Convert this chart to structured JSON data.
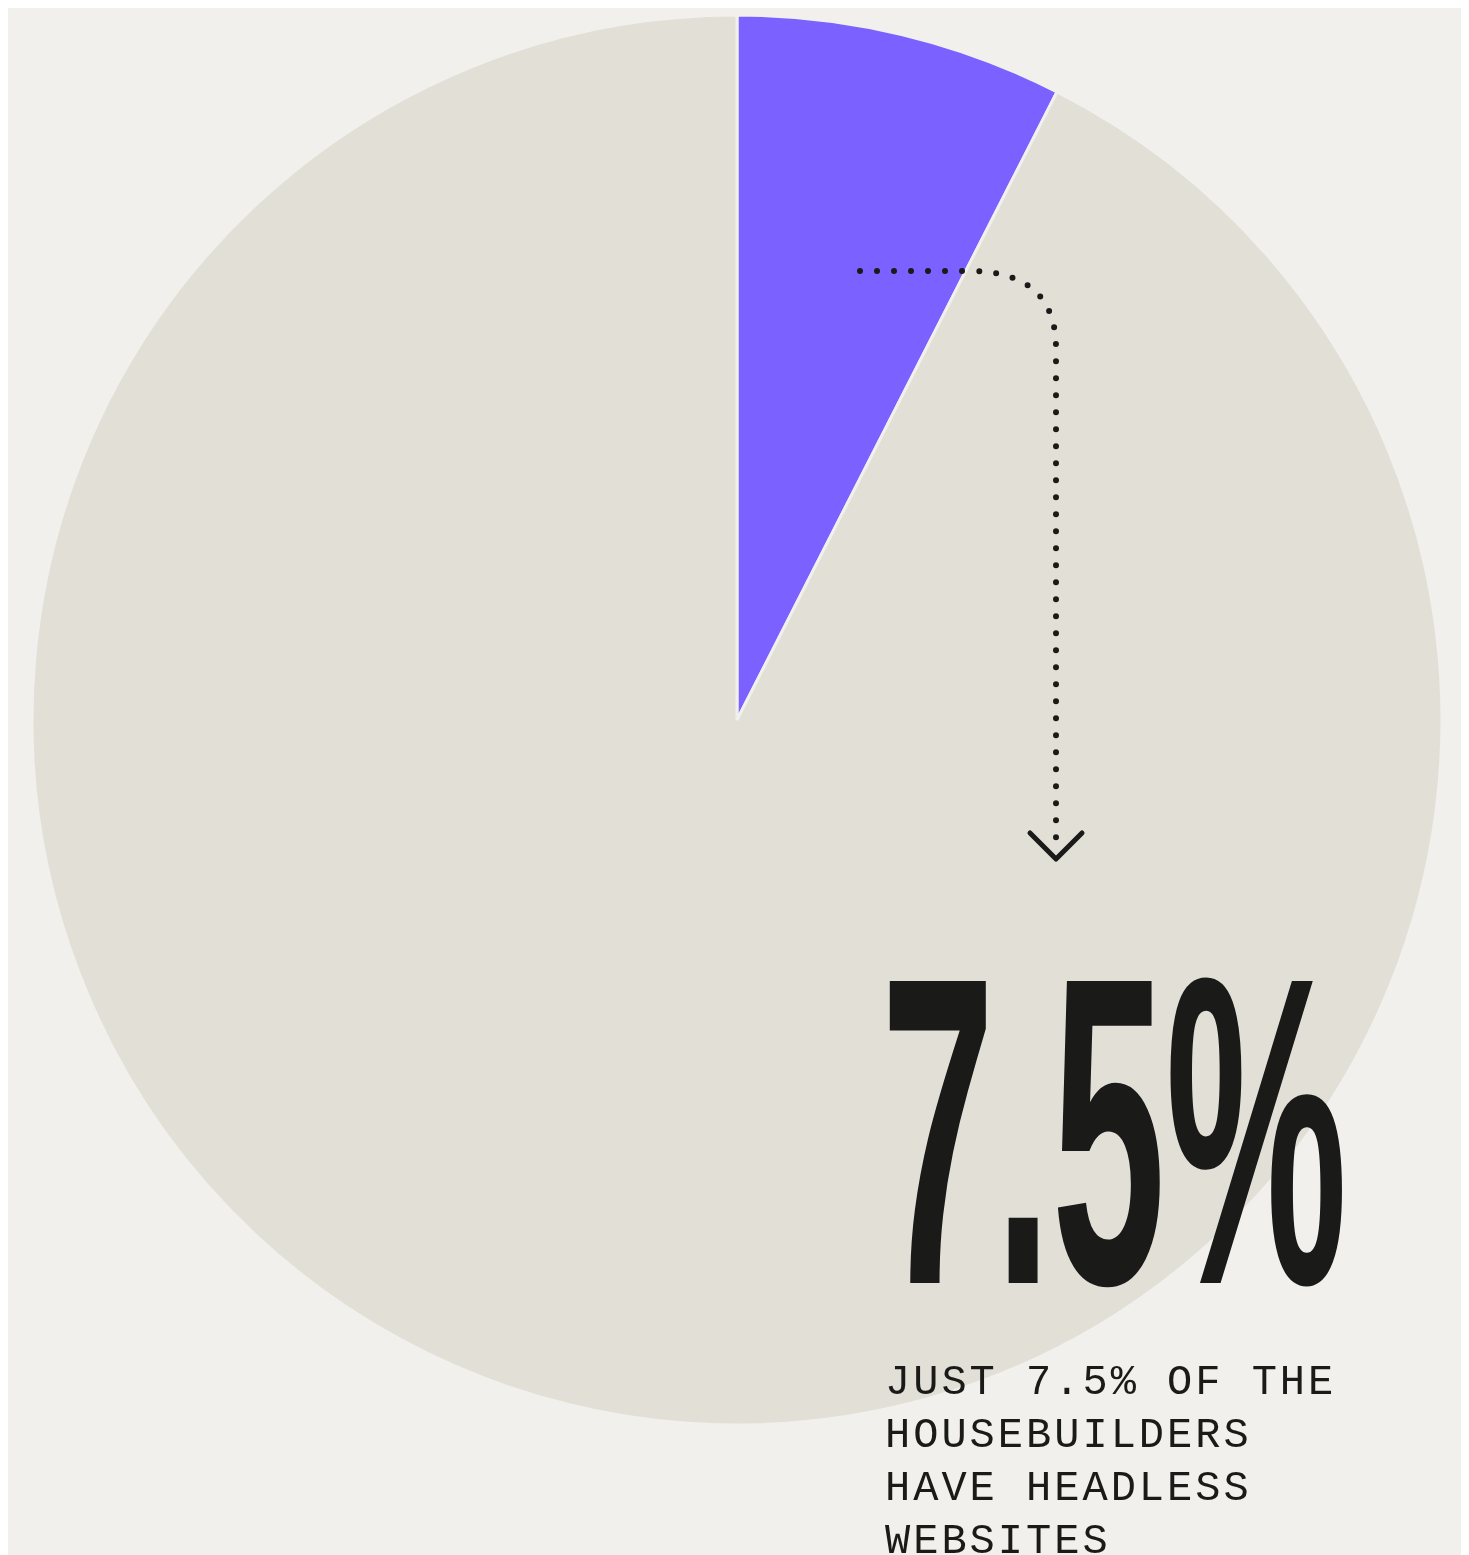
{
  "chart_data": {
    "type": "pie",
    "categories": [
      null,
      null
    ],
    "values": [
      7.5,
      92.5
    ],
    "colors": [
      "#7b61ff",
      "#e2dfd7"
    ],
    "annotations": [
      "7.5%",
      "JUST 7.5% OF THE HOUSEBUILDERS HAVE HEADLESS WEBSITES"
    ]
  }
}
